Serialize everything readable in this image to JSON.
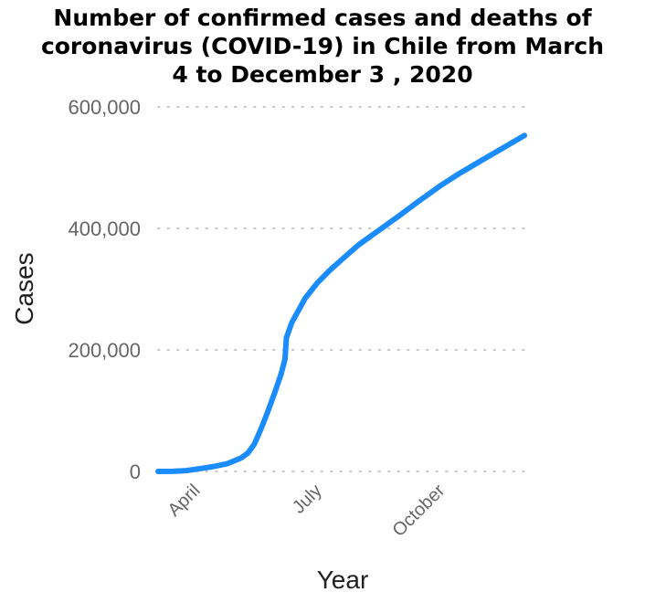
{
  "chart_data": {
    "type": "line",
    "title_lines": [
      "Number of confirmed cases and deaths of",
      "coronavirus (COVID-19) in Chile from March",
      "4 to December 3 , 2020"
    ],
    "xlabel": "Year",
    "ylabel": "Cases",
    "x_range": [
      "2020-03-04",
      "2020-12-03"
    ],
    "ylim": [
      0,
      600000
    ],
    "y_ticks": [
      0,
      200000,
      400000,
      600000
    ],
    "y_tick_labels": [
      "0",
      "200,000",
      "400,000",
      "600,000"
    ],
    "x_ticks": [
      {
        "date": "2020-04-01",
        "label": "April"
      },
      {
        "date": "2020-07-01",
        "label": "July"
      },
      {
        "date": "2020-10-01",
        "label": "October"
      }
    ],
    "grid": true,
    "line_color": "#1a8cff",
    "series": [
      {
        "x": [
          "2020-03-04",
          "2020-03-15",
          "2020-03-25",
          "2020-04-05",
          "2020-04-15",
          "2020-04-25",
          "2020-05-05",
          "2020-05-10",
          "2020-05-15",
          "2020-05-20",
          "2020-05-25",
          "2020-05-30",
          "2020-06-04",
          "2020-06-07",
          "2020-06-08",
          "2020-06-12",
          "2020-06-17",
          "2020-06-22",
          "2020-07-01",
          "2020-07-10",
          "2020-07-20",
          "2020-08-01",
          "2020-08-15",
          "2020-09-01",
          "2020-09-15",
          "2020-10-01",
          "2020-10-15",
          "2020-11-01",
          "2020-11-15",
          "2020-12-03"
        ],
        "values": [
          0,
          200,
          1300,
          4800,
          8300,
          13000,
          22000,
          30000,
          45000,
          70000,
          98000,
          128000,
          160000,
          185000,
          220000,
          245000,
          265000,
          285000,
          310000,
          330000,
          350000,
          373000,
          395000,
          422000,
          445000,
          470000,
          490000,
          512000,
          530000,
          553000
        ]
      }
    ]
  }
}
